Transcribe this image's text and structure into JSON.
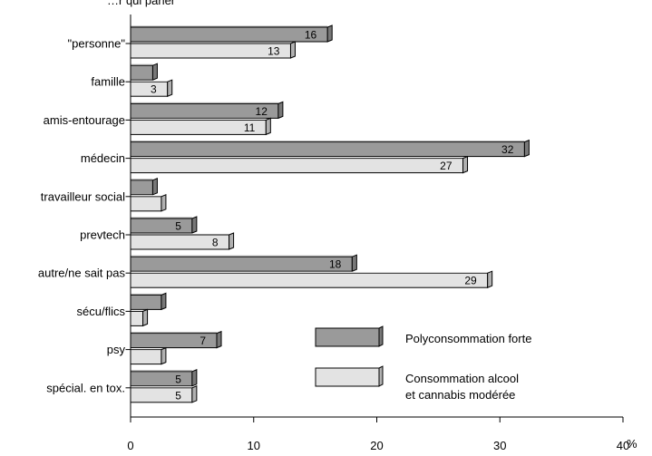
{
  "chart_data": {
    "type": "bar",
    "orientation": "horizontal",
    "top_text": "…r qui parler",
    "categories": [
      "\"personne\"",
      "famille",
      "amis-entourage",
      "médecin",
      "travailleur social",
      "prevtech",
      "autre/ne sait pas",
      "sécu/flics",
      "psy",
      "spécial. en tox."
    ],
    "series": [
      {
        "name": "Polyconsommation forte",
        "color": "#9a9a9a",
        "values": [
          16,
          1.8,
          12,
          32,
          1.8,
          5,
          18,
          2.5,
          7,
          5
        ],
        "labels": [
          "16",
          "",
          "12",
          "32",
          "",
          "5",
          "18",
          "",
          "7",
          "5"
        ]
      },
      {
        "name": "Consommation alcool et cannabis modérée",
        "legend_lines": [
          "Consommation alcool",
          "et cannabis modérée"
        ],
        "color": "#e3e3e3",
        "values": [
          13,
          3,
          11,
          27,
          2.5,
          8,
          29,
          1,
          2.5,
          5
        ],
        "labels": [
          "13",
          "3",
          "11",
          "27",
          "",
          "8",
          "29",
          "",
          "",
          "5"
        ]
      }
    ],
    "x_ticks": [
      "0",
      "10",
      "20",
      "30",
      "40"
    ],
    "x_unit": "%",
    "xlim": [
      0,
      40
    ],
    "grid": false,
    "legend_position": "right-bottom"
  }
}
